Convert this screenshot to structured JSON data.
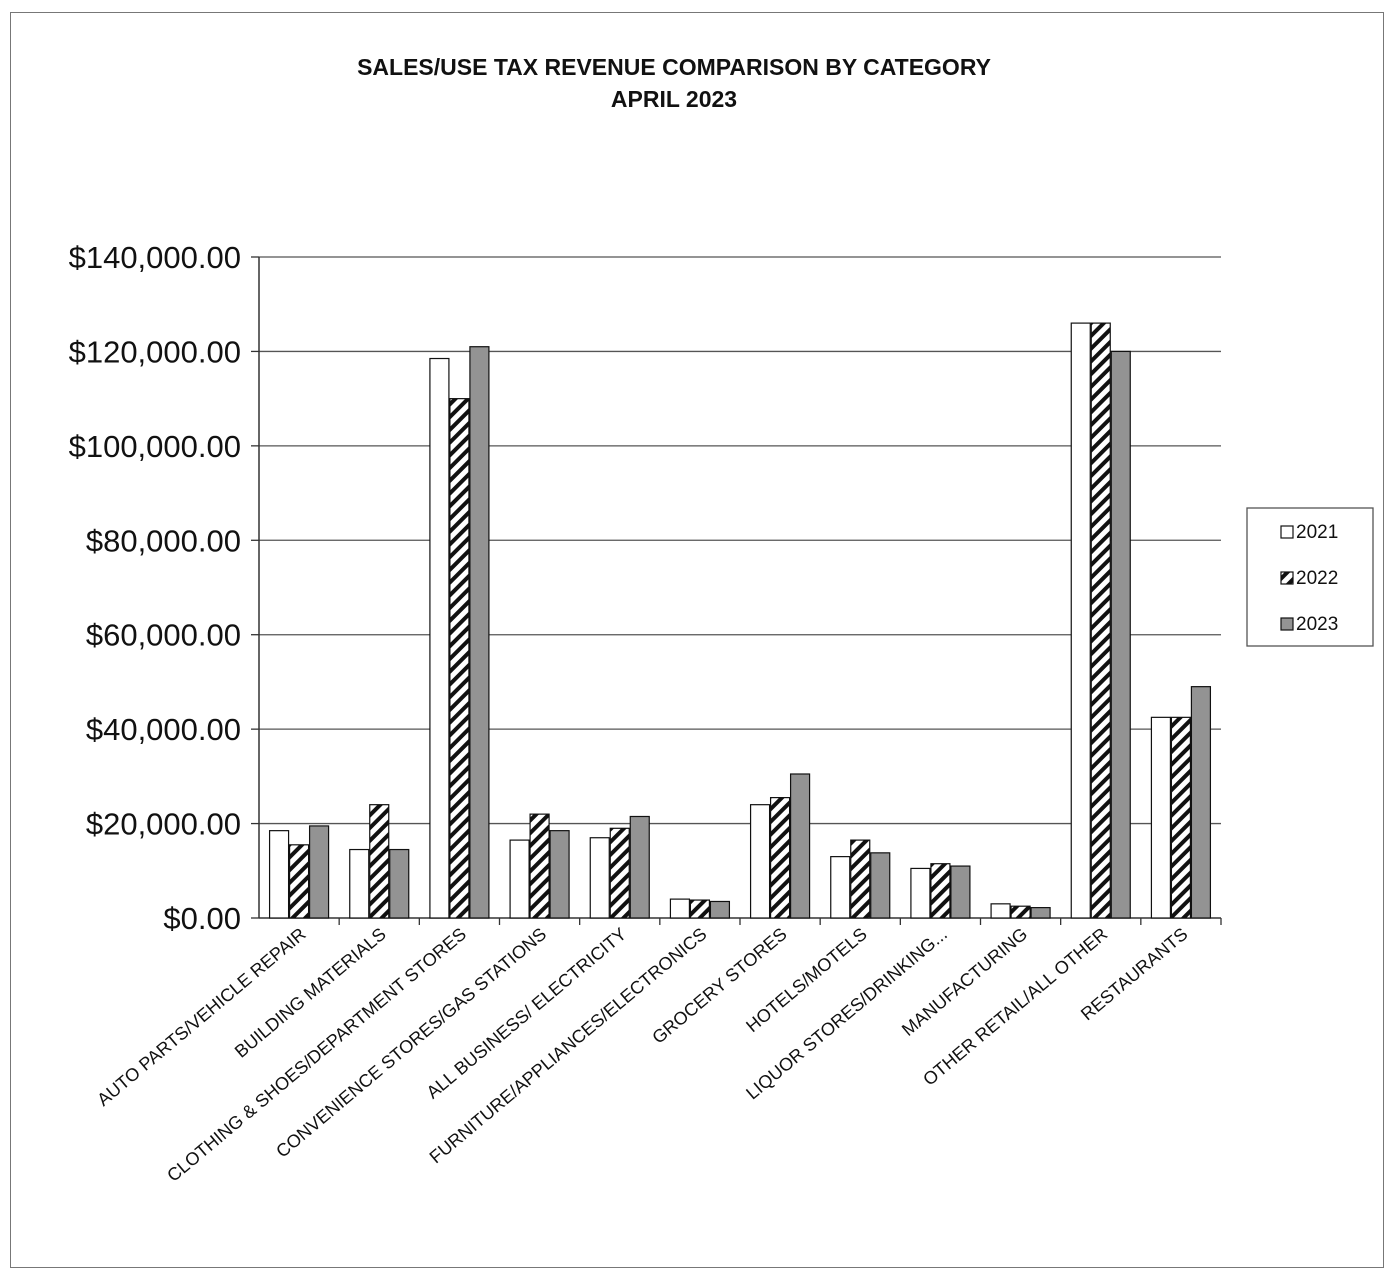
{
  "chart_data": {
    "type": "bar",
    "title": "SALES/USE TAX REVENUE COMPARISON BY CATEGORY",
    "subtitle": "APRIL 2023",
    "xlabel": "",
    "ylabel": "",
    "ylim": [
      0,
      140000
    ],
    "ytick_values": [
      0,
      20000,
      40000,
      60000,
      80000,
      100000,
      120000,
      140000
    ],
    "ytick_labels": [
      "$0.00",
      "$20,000.00",
      "$40,000.00",
      "$60,000.00",
      "$80,000.00",
      "$100,000.00",
      "$120,000.00",
      "$140,000.00"
    ],
    "grid": true,
    "legend_position": "right",
    "categories": [
      "AUTO PARTS/VEHICLE REPAIR",
      "BUILDING MATERIALS",
      "CLOTHING & SHOES/DEPARTMENT STORES",
      "CONVENIENCE STORES/GAS STATIONS",
      "ALL BUSINESS/ ELECTRICITY",
      "FURNITURE/APPLIANCES/ELECTRONICS",
      "GROCERY STORES",
      "HOTELS/MOTELS",
      "LIQUOR STORES/DRINKING...",
      "MANUFACTURING",
      "OTHER RETAIL/ALL OTHER",
      "RESTAURANTS"
    ],
    "series": [
      {
        "name": "2021",
        "fill": "#ffffff",
        "pattern": "none",
        "values": [
          18500,
          14500,
          118500,
          16500,
          17000,
          4000,
          24000,
          13000,
          10500,
          3000,
          126000,
          42500
        ]
      },
      {
        "name": "2022",
        "fill": "#ffffff",
        "pattern": "diagonal-hatch",
        "values": [
          15500,
          24000,
          110000,
          22000,
          19000,
          3800,
          25500,
          16500,
          11500,
          2500,
          126000,
          42500
        ]
      },
      {
        "name": "2023",
        "fill": "#939393",
        "pattern": "none",
        "values": [
          19500,
          14500,
          121000,
          18500,
          21500,
          3500,
          30500,
          13800,
          11000,
          2200,
          120000,
          49000
        ]
      }
    ]
  }
}
